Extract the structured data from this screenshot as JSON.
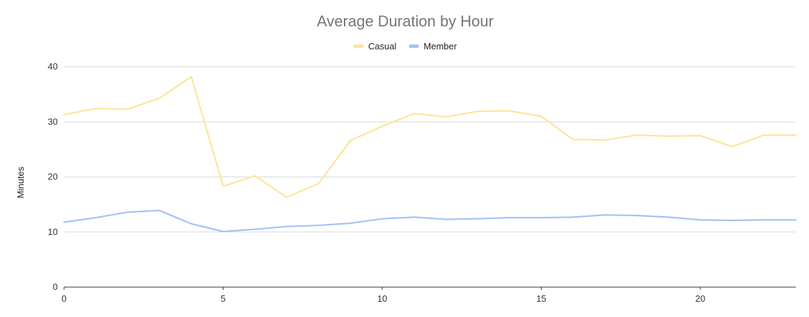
{
  "chart_data": {
    "type": "line",
    "title": "Average Duration by Hour",
    "xlabel": "",
    "ylabel": "Minutes",
    "xlim": [
      0,
      23
    ],
    "ylim": [
      0,
      40
    ],
    "x_ticks": [
      0,
      5,
      10,
      15,
      20
    ],
    "y_ticks": [
      0,
      10,
      20,
      30,
      40
    ],
    "grid": true,
    "legend_position": "top-center",
    "x": [
      0,
      1,
      2,
      3,
      4,
      5,
      6,
      7,
      8,
      9,
      10,
      11,
      12,
      13,
      14,
      15,
      16,
      17,
      18,
      19,
      20,
      21,
      22,
      23
    ],
    "series": [
      {
        "name": "Casual",
        "color": "#fde49a",
        "values": [
          31.3,
          32.4,
          32.3,
          34.3,
          38.2,
          18.3,
          20.2,
          16.3,
          18.8,
          26.6,
          29.2,
          31.5,
          30.9,
          31.9,
          32.0,
          31.0,
          26.8,
          26.7,
          27.6,
          27.4,
          27.5,
          25.5,
          27.6,
          27.6
        ]
      },
      {
        "name": "Member",
        "color": "#a4c2f4",
        "values": [
          11.8,
          12.6,
          13.6,
          13.9,
          11.5,
          10.1,
          10.5,
          11.0,
          11.2,
          11.6,
          12.4,
          12.7,
          12.3,
          12.4,
          12.6,
          12.6,
          12.7,
          13.1,
          13.0,
          12.7,
          12.2,
          12.1,
          12.2,
          12.2
        ]
      }
    ]
  }
}
